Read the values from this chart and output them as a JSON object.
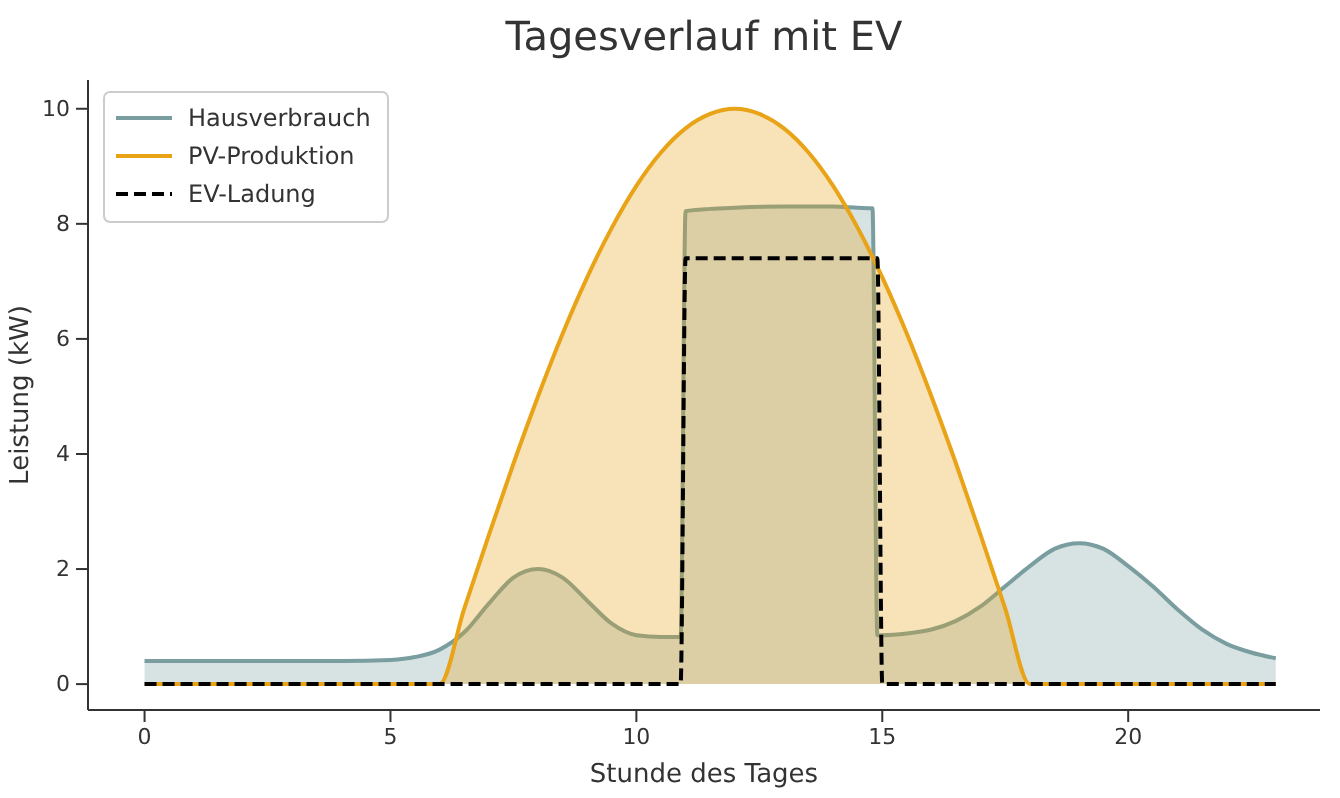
{
  "chart_data": {
    "type": "line",
    "title": "Tagesverlauf mit EV",
    "xlabel": "Stunde des Tages",
    "ylabel": "Leistung (kW)",
    "xlim": [
      -1.15,
      23.9
    ],
    "ylim": [
      -0.45,
      10.5
    ],
    "xticks": [
      0,
      5,
      10,
      15,
      20
    ],
    "yticks": [
      0,
      2,
      4,
      6,
      8,
      10
    ],
    "grid": false,
    "legend": "top left",
    "series": [
      {
        "name": "Hausverbrauch",
        "type": "area",
        "color": "#7a9e9f",
        "x": [
          0,
          1,
          2,
          3,
          4,
          5,
          5.5,
          6,
          6.5,
          7,
          7.5,
          8,
          8.5,
          9,
          9.5,
          10,
          10.5,
          10.9,
          11,
          11.5,
          12,
          13,
          14,
          14.5,
          14.8,
          14.9,
          15,
          15.5,
          16,
          16.5,
          17,
          17.5,
          18,
          18.5,
          19,
          19.5,
          20,
          20.5,
          21,
          21.5,
          22,
          22.5,
          23
        ],
        "values": [
          0.4,
          0.4,
          0.4,
          0.4,
          0.4,
          0.42,
          0.47,
          0.6,
          0.9,
          1.4,
          1.85,
          2.0,
          1.85,
          1.45,
          1.05,
          0.85,
          0.82,
          0.82,
          8.22,
          8.26,
          8.28,
          8.3,
          8.3,
          8.28,
          8.27,
          0.85,
          0.85,
          0.88,
          0.95,
          1.1,
          1.35,
          1.7,
          2.05,
          2.35,
          2.45,
          2.35,
          2.05,
          1.7,
          1.3,
          0.95,
          0.7,
          0.55,
          0.45
        ]
      },
      {
        "name": "PV-Produktion",
        "type": "area",
        "color": "#e8a317",
        "x": [
          0,
          6,
          6.5,
          7,
          7.5,
          8,
          8.5,
          9,
          9.5,
          10,
          10.5,
          11,
          11.5,
          12,
          12.5,
          13,
          13.5,
          14,
          14.5,
          15,
          15.5,
          16,
          16.5,
          17,
          17.5,
          18,
          23
        ],
        "values": [
          0,
          0,
          1.31,
          2.59,
          3.83,
          5.0,
          6.09,
          7.07,
          7.93,
          8.66,
          9.24,
          9.66,
          9.91,
          10,
          9.91,
          9.66,
          9.24,
          8.66,
          7.93,
          7.07,
          6.09,
          5.0,
          3.83,
          2.59,
          1.31,
          0,
          0
        ]
      },
      {
        "name": "EV-Ladung",
        "line_style": "dashed",
        "color": "#000000",
        "x": [
          0,
          10.9,
          11,
          14.9,
          15,
          23
        ],
        "values": [
          0,
          0,
          7.4,
          7.4,
          0,
          0
        ]
      }
    ]
  }
}
